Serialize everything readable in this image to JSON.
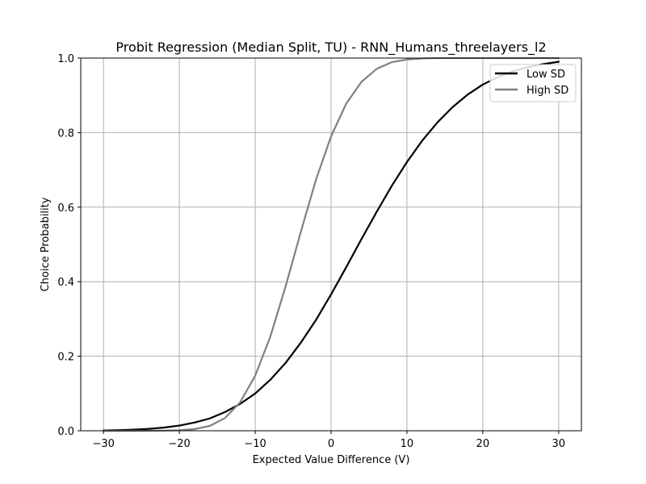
{
  "chart_data": {
    "type": "line",
    "title": "Probit Regression (Median Split, TU) - RNN_Humans_threelayers_l2",
    "xlabel": "Expected Value Difference (V)",
    "ylabel": "Choice Probability",
    "xlim": [
      -33,
      33
    ],
    "ylim": [
      0,
      1
    ],
    "xticks": [
      -30,
      -20,
      -10,
      0,
      10,
      20,
      30
    ],
    "xtick_labels": [
      "−30",
      "−20",
      "−10",
      "0",
      "10",
      "20",
      "30"
    ],
    "yticks": [
      0.0,
      0.2,
      0.4,
      0.6,
      0.8,
      1.0
    ],
    "ytick_labels": [
      "0.0",
      "0.2",
      "0.4",
      "0.6",
      "0.8",
      "1.0"
    ],
    "grid": true,
    "legend_position": "top-right",
    "series": [
      {
        "name": "Low SD",
        "color": "#000000",
        "x": [
          -30,
          -28,
          -26,
          -24,
          -22,
          -20,
          -18,
          -16,
          -14,
          -12,
          -10,
          -8,
          -6,
          -4,
          -2,
          0,
          2,
          4,
          6,
          8,
          10,
          12,
          14,
          16,
          18,
          20,
          22,
          24,
          26,
          28,
          30
        ],
        "y": [
          0.0009,
          0.0017,
          0.003,
          0.0052,
          0.0087,
          0.014,
          0.022,
          0.033,
          0.05,
          0.072,
          0.1,
          0.137,
          0.182,
          0.236,
          0.297,
          0.366,
          0.439,
          0.514,
          0.587,
          0.657,
          0.721,
          0.778,
          0.827,
          0.868,
          0.902,
          0.929,
          0.949,
          0.965,
          0.976,
          0.984,
          0.99
        ]
      },
      {
        "name": "High SD",
        "color": "#808080",
        "x": [
          -30,
          -28,
          -26,
          -24,
          -22,
          -20,
          -18,
          -16,
          -14,
          -12,
          -10,
          -8,
          -6,
          -4,
          -2,
          0,
          2,
          4,
          6,
          8,
          10,
          12,
          14,
          16,
          18,
          20,
          22,
          24,
          26,
          28,
          30
        ],
        "y": [
          0.0,
          0.0,
          0.0,
          0.0001,
          0.0004,
          0.0013,
          0.0044,
          0.013,
          0.034,
          0.076,
          0.148,
          0.253,
          0.387,
          0.533,
          0.673,
          0.79,
          0.878,
          0.936,
          0.971,
          0.989,
          0.996,
          0.999,
          1.0,
          1.0,
          1.0,
          1.0,
          1.0,
          1.0,
          1.0,
          1.0,
          1.0
        ]
      }
    ]
  }
}
